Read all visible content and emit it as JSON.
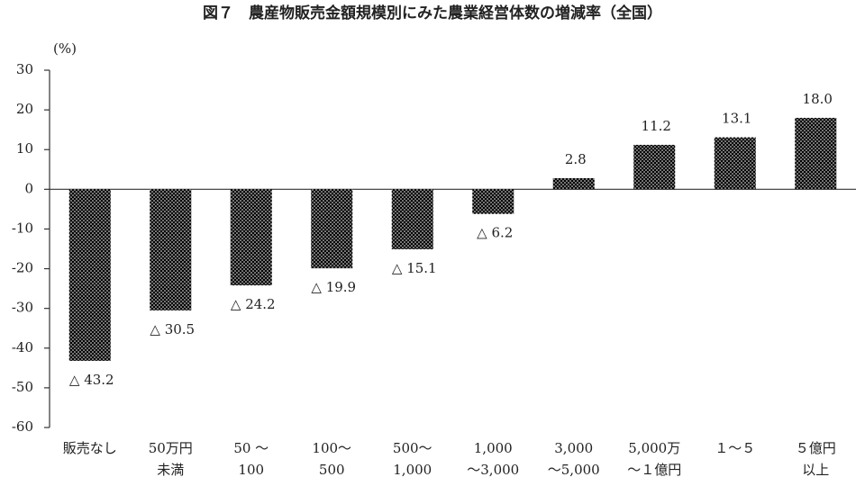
{
  "chart_data": {
    "type": "bar",
    "title": "図７　農産物販売金額規模別にみた農業経営体数の増減率（全国）",
    "y_label": "(%)",
    "categories": [
      "販売なし",
      "50万円\n未満",
      "50 ～\n100",
      "100～\n500",
      "500～\n1,000",
      "1,000\n～3,000",
      "3,000\n～5,000",
      "5,000万\n～１億円",
      "１～５",
      "５億円\n以上"
    ],
    "values": [
      -43.2,
      -30.5,
      -24.2,
      -19.9,
      -15.1,
      -6.2,
      2.8,
      11.2,
      13.1,
      18.0
    ],
    "value_labels": [
      "△ 43.2",
      "△ 30.5",
      "△ 24.2",
      "△ 19.9",
      "△ 15.1",
      "△ 6.2",
      "2.8",
      "11.2",
      "13.1",
      "18.0"
    ],
    "color": "#000000",
    "ylim": [
      -60,
      30
    ],
    "yticks": [
      -60,
      -50,
      -40,
      -30,
      -20,
      -10,
      0,
      10,
      20,
      30
    ],
    "grid": false
  }
}
